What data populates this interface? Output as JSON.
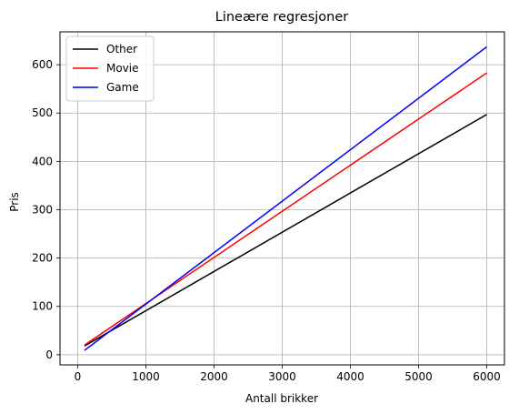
{
  "chart_data": {
    "type": "line",
    "title": "Lineære regresjoner",
    "xlabel": "Antall brikker",
    "ylabel": "Pris",
    "xlim": [
      -260,
      6260
    ],
    "ylim": [
      -21,
      668
    ],
    "xticks": [
      0,
      1000,
      2000,
      3000,
      4000,
      5000,
      6000
    ],
    "yticks": [
      0,
      100,
      200,
      300,
      400,
      500,
      600
    ],
    "grid": true,
    "legend_position": "top-left",
    "series": [
      {
        "name": "Other",
        "color": "#000000",
        "x": [
          100,
          6000
        ],
        "y": [
          18,
          497
        ]
      },
      {
        "name": "Movie",
        "color": "#ff0000",
        "x": [
          100,
          6000
        ],
        "y": [
          20,
          583
        ]
      },
      {
        "name": "Game",
        "color": "#0000ff",
        "x": [
          100,
          6000
        ],
        "y": [
          9,
          637
        ]
      }
    ]
  }
}
